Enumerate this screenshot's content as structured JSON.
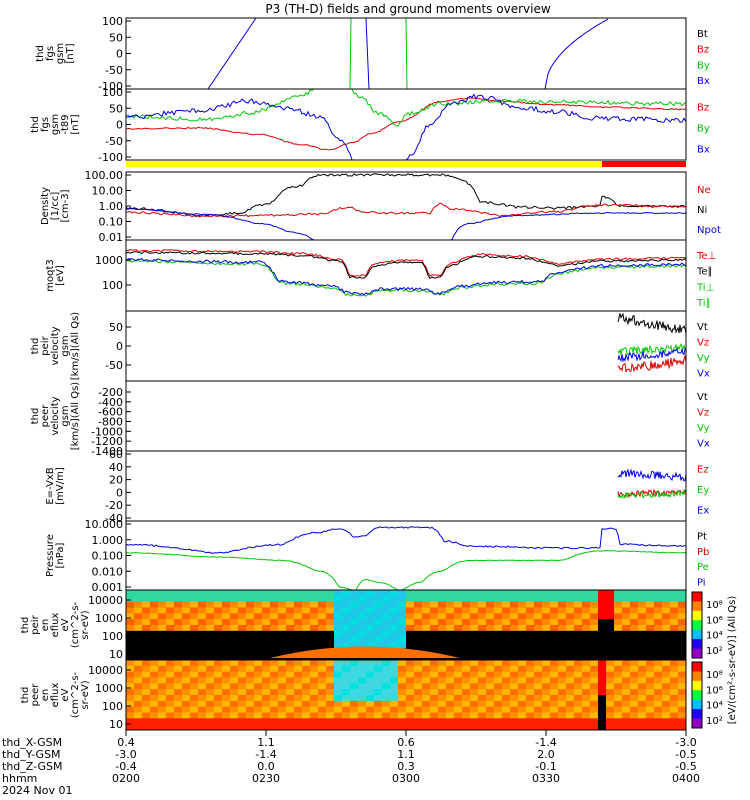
{
  "title": "P3 (TH-D) fields and ground moments overview",
  "chart_data": [
    {
      "type": "line",
      "ylabel_lines": [
        "thd",
        "fgs",
        "gsm",
        "[nT]"
      ],
      "ylim": [
        -100,
        100
      ],
      "yticks": [
        "100",
        "50",
        "0",
        "-50",
        "-100"
      ],
      "series": [
        {
          "name": "Bt",
          "color": "#000000"
        },
        {
          "name": "Bz",
          "color": "#e00000"
        },
        {
          "name": "By",
          "color": "#00c800"
        },
        {
          "name": "Bx",
          "color": "#0000e0"
        }
      ]
    },
    {
      "type": "line",
      "ylabel_lines": [
        "thd",
        "fgs",
        "gsm",
        "-t89",
        "[nT]"
      ],
      "ylim": [
        -120,
        120
      ],
      "yticks": [
        "100",
        "50",
        "0",
        "-50",
        "-100"
      ],
      "series": [
        {
          "name": "Bz",
          "color": "#e00000"
        },
        {
          "name": "By",
          "color": "#00c800"
        },
        {
          "name": "Bx",
          "color": "#0000e0"
        }
      ]
    },
    {
      "type": "line",
      "ylabel_lines": [
        "Density",
        "[1/cc]",
        "[cm-3]"
      ],
      "log": true,
      "yticks": [
        "100.00",
        "10.00",
        "1.00",
        "0.10",
        "0.01"
      ],
      "series": [
        {
          "name": "Ne",
          "color": "#e00000"
        },
        {
          "name": "Ni",
          "color": "#000000"
        },
        {
          "name": "Npot",
          "color": "#0000e0"
        }
      ]
    },
    {
      "type": "line",
      "ylabel_lines": [
        "moqt3",
        "[eV]"
      ],
      "log": true,
      "yticks": [
        "1000",
        "100"
      ],
      "series": [
        {
          "name": "Te⊥",
          "color": "#e00000"
        },
        {
          "name": "Te∥",
          "color": "#000000"
        },
        {
          "name": "Ti⊥",
          "color": "#00c800"
        },
        {
          "name": "Ti∥",
          "color": "#00c800"
        }
      ]
    },
    {
      "type": "line",
      "ylabel_lines": [
        "thd",
        "peir",
        "velocity",
        "gsm",
        "[km/s](All Qs)"
      ],
      "ylim": [
        -75,
        95
      ],
      "yticks": [
        "50",
        "0",
        "-50"
      ],
      "series": [
        {
          "name": "Vt",
          "color": "#000000"
        },
        {
          "name": "Vz",
          "color": "#e00000"
        },
        {
          "name": "Vy",
          "color": "#00c800"
        },
        {
          "name": "Vx",
          "color": "#0000e0"
        }
      ]
    },
    {
      "type": "line",
      "ylabel_lines": [
        "thd",
        "peer",
        "velocity",
        "gsm",
        "[km/s](All Qs)"
      ],
      "ylim": [
        -1400,
        0
      ],
      "yticks": [
        "-200",
        "-400",
        "-600",
        "-800",
        "-1000",
        "-1200",
        "-1400"
      ],
      "series": [
        {
          "name": "Vt",
          "color": "#000000"
        },
        {
          "name": "Vz",
          "color": "#e00000"
        },
        {
          "name": "Vy",
          "color": "#00c800"
        },
        {
          "name": "Vx",
          "color": "#0000e0"
        }
      ]
    },
    {
      "type": "line",
      "ylabel_lines": [
        "E=-VxB",
        "[mV/m]"
      ],
      "ylim": [
        -40,
        60
      ],
      "yticks": [
        "60",
        "40",
        "20",
        "0",
        "-20",
        "-40"
      ],
      "series": [
        {
          "name": "Ez",
          "color": "#e00000"
        },
        {
          "name": "Ey",
          "color": "#00c800"
        },
        {
          "name": "Ex",
          "color": "#0000e0"
        }
      ]
    },
    {
      "type": "line",
      "ylabel_lines": [
        "Pressure",
        "[nPa]"
      ],
      "log": true,
      "yticks": [
        "10.000",
        "1.000",
        "0.100",
        "0.010",
        "0.001"
      ],
      "series": [
        {
          "name": "Pt",
          "color": "#000000"
        },
        {
          "name": "Pb",
          "color": "#e00000"
        },
        {
          "name": "Pe",
          "color": "#00c800"
        },
        {
          "name": "Pi",
          "color": "#0000e0"
        }
      ]
    },
    {
      "type": "heatmap",
      "ylabel_lines": [
        "thd",
        "peir",
        "en",
        "eflux",
        "eV",
        "(cm^2-s-",
        "sr-eV)"
      ],
      "yticks": [
        "10000",
        "1000",
        "100",
        "10"
      ],
      "colorbar_ticks": [
        "10⁸",
        "10⁶",
        "10⁴",
        "10²"
      ]
    },
    {
      "type": "heatmap",
      "ylabel_lines": [
        "thd",
        "peer",
        "en",
        "eflux",
        "eV",
        "(cm^2-s-",
        "sr-eV)"
      ],
      "yticks": [
        "10000",
        "1000",
        "100",
        "10"
      ],
      "colorbar_ticks": [
        "10⁸",
        "10⁶",
        "10⁴",
        "10²"
      ]
    }
  ],
  "colorbar_label": "[eV/(cm²-s-sr-eV)] (All Qs)",
  "axis": {
    "row_labels": [
      "thd_X-GSM",
      "thd_Y-GSM",
      "thd_Z-GSM",
      "hhmm",
      "2024 Nov 01"
    ],
    "columns": [
      {
        "x": "0.4",
        "y": "-3.0",
        "z": "-0.4",
        "hhmm": "0200"
      },
      {
        "x": "1.1",
        "y": "-1.4",
        "z": "0.0",
        "hhmm": "0230"
      },
      {
        "x": "0.6",
        "y": "1.1",
        "z": "0.3",
        "hhmm": "0300"
      },
      {
        "x": "-1.4",
        "y": "2.0",
        "z": "-0.1",
        "hhmm": "0330"
      },
      {
        "x": "-3.0",
        "y": "-0.5",
        "z": "-0.5",
        "hhmm": "0400"
      }
    ]
  },
  "mode_bar": {
    "colors": [
      "#ffff00",
      "#ff0000"
    ],
    "switch_hhmm": "0348"
  },
  "colors": {
    "axis": "#000000",
    "background": "#ffffff"
  }
}
